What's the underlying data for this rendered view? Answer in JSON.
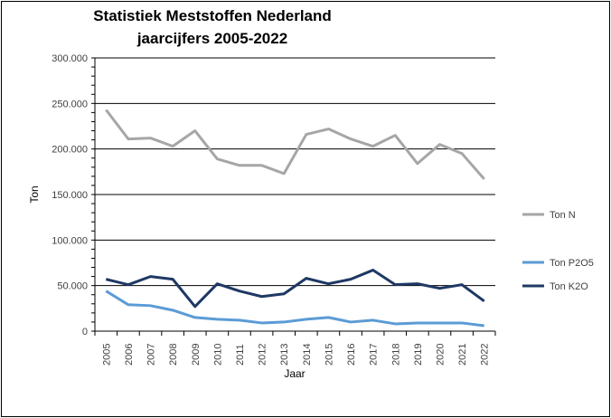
{
  "chart_data": {
    "type": "line",
    "title": [
      "Statistiek Meststoffen Nederland",
      "jaarcijfers 2005-2022"
    ],
    "xlabel": "Jaar",
    "ylabel": "Ton",
    "ylim": [
      0,
      300000
    ],
    "yticks": [
      0,
      50000,
      100000,
      150000,
      200000,
      250000,
      300000
    ],
    "ytick_labels": [
      "0",
      "50.000",
      "100.000",
      "150.000",
      "200.000",
      "250.000",
      "300.000"
    ],
    "grid": true,
    "legend_position": "right",
    "categories": [
      "2005",
      "2006",
      "2007",
      "2008",
      "2009",
      "2010",
      "2011",
      "2012",
      "2013",
      "2014",
      "2015",
      "2016",
      "2017",
      "2018",
      "2019",
      "2020",
      "2021",
      "2022"
    ],
    "series": [
      {
        "name": "Ton N",
        "color": "#a6a6a6",
        "values": [
          243000,
          211000,
          212000,
          203000,
          220000,
          189000,
          182000,
          182000,
          173000,
          216000,
          222000,
          211000,
          203000,
          215000,
          184000,
          205000,
          195000,
          167000
        ]
      },
      {
        "name": "Ton P2O5",
        "color": "#5b9bd5",
        "values": [
          44000,
          29000,
          28000,
          23000,
          15000,
          13000,
          12000,
          9000,
          10000,
          13000,
          15000,
          10000,
          12000,
          8000,
          9000,
          9000,
          9000,
          6000
        ]
      },
      {
        "name": "Ton K2O",
        "color": "#1f3864",
        "values": [
          57000,
          51000,
          60000,
          57000,
          27000,
          52000,
          44000,
          38000,
          41000,
          58000,
          52000,
          57000,
          67000,
          51000,
          52000,
          47000,
          51000,
          33000
        ]
      }
    ]
  }
}
